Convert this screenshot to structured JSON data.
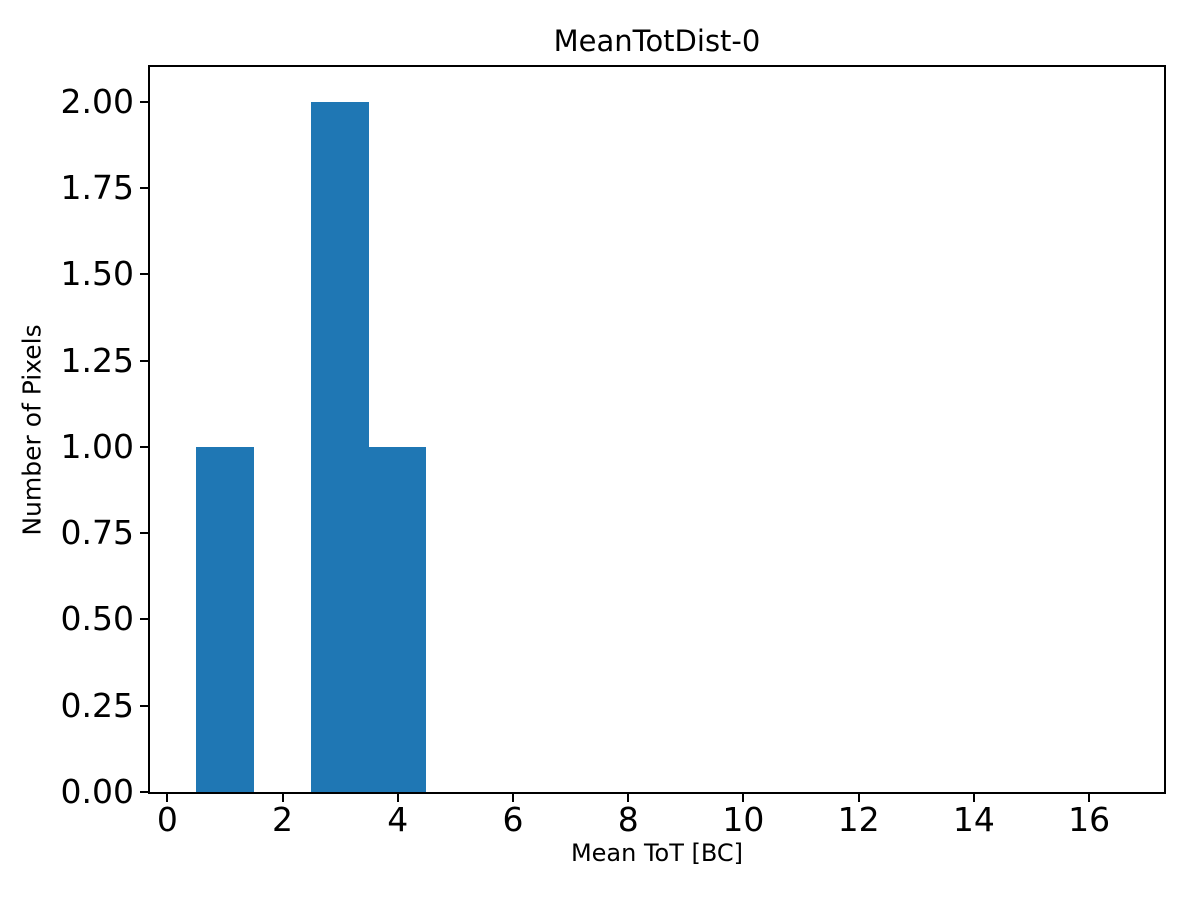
{
  "figure": {
    "background_color": "#ffffff",
    "spine_color": "#000000",
    "text_color": "#000000"
  },
  "chart_data": {
    "type": "bar",
    "subtype": "histogram",
    "title": "MeanTotDist-0",
    "xlabel": "Mean ToT [BC]",
    "ylabel": "Number of Pixels",
    "bar_color": "#1f77b4",
    "bins": {
      "edges": [
        0.5,
        1.5,
        2.5,
        3.5,
        4.5
      ],
      "counts": [
        1,
        0,
        2,
        1
      ]
    },
    "xlim": [
      -0.3,
      17.3
    ],
    "ylim": [
      0,
      2.1
    ],
    "xticks": [
      0,
      2,
      4,
      6,
      8,
      10,
      12,
      14,
      16
    ],
    "xtick_labels": [
      "0",
      "2",
      "4",
      "6",
      "8",
      "10",
      "12",
      "14",
      "16"
    ],
    "yticks": [
      0.0,
      0.25,
      0.5,
      0.75,
      1.0,
      1.25,
      1.5,
      1.75,
      2.0
    ],
    "ytick_labels": [
      "0.00",
      "0.25",
      "0.50",
      "0.75",
      "1.00",
      "1.25",
      "1.50",
      "1.75",
      "2.00"
    ],
    "grid": false,
    "legend": null
  }
}
